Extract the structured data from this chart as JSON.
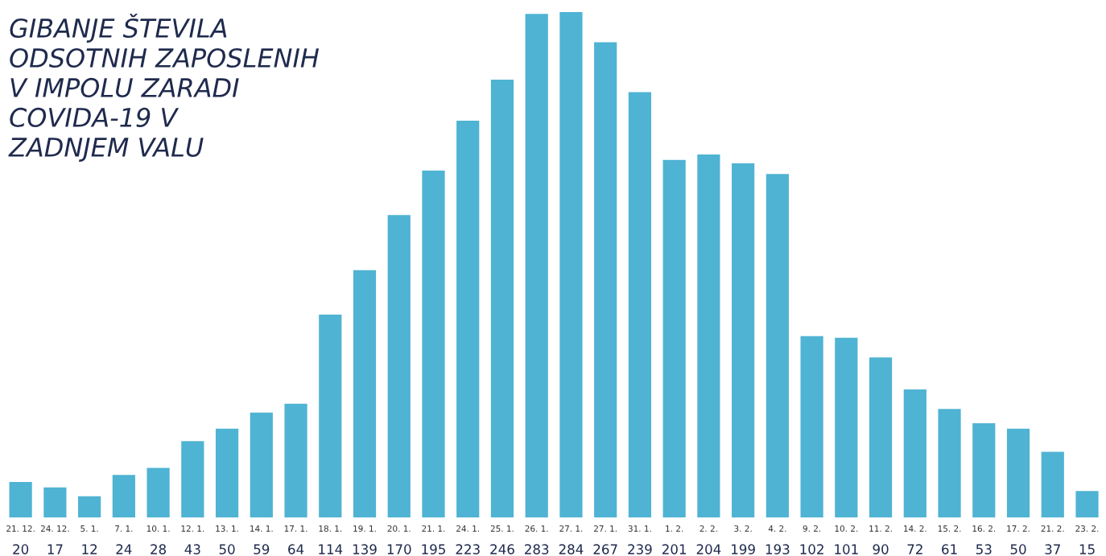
{
  "chart_data": {
    "type": "bar",
    "title": "GIBANJE ŠTEVILA\nODSOTNIH ZAPOSLENIH\nV IMPOLU ZARADI\nCOVIDA-19 V\nZADNJEM VALU",
    "categories": [
      "21. 12.",
      "24. 12.",
      "5. 1.",
      "7. 1.",
      "10. 1.",
      "12. 1.",
      "13. 1.",
      "14. 1.",
      "17. 1.",
      "18. 1.",
      "19. 1.",
      "20. 1.",
      "21. 1.",
      "24. 1.",
      "25. 1.",
      "26. 1.",
      "27. 1.",
      "27. 1.",
      "31. 1.",
      "1. 2.",
      "2. 2.",
      "3. 2.",
      "4. 2.",
      "9. 2.",
      "10. 2.",
      "11. 2.",
      "14. 2.",
      "15. 2.",
      "16. 2.",
      "17. 2.",
      "21. 2.",
      "23. 2."
    ],
    "values": [
      20,
      17,
      12,
      24,
      28,
      43,
      50,
      59,
      64,
      114,
      139,
      170,
      195,
      223,
      246,
      283,
      284,
      267,
      239,
      201,
      204,
      199,
      193,
      102,
      101,
      90,
      72,
      61,
      53,
      50,
      37,
      15
    ],
    "color": "#4fb3d3",
    "data_labels": true
  }
}
